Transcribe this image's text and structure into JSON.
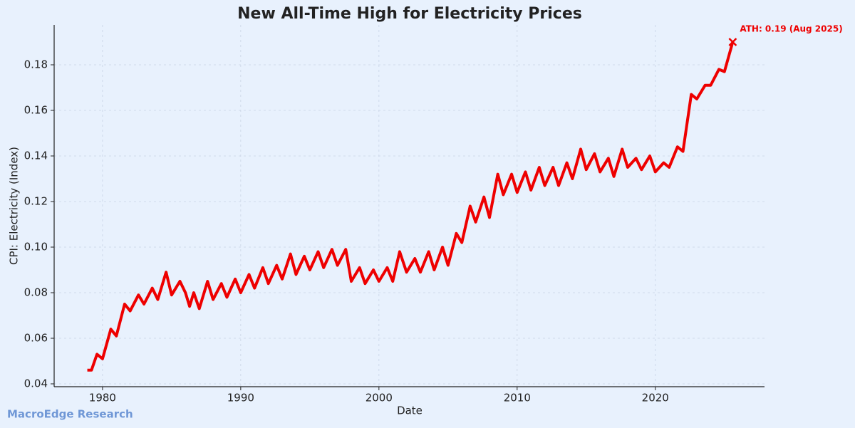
{
  "chart_data": {
    "type": "line",
    "title": "New All-Time High for Electricity Prices",
    "x_label": "Date",
    "y_label": "CPI: Electricity (Index)",
    "annotation": "ATH: 0.19 (Aug 2025)",
    "watermark": "MacroEdge Research",
    "xlim": [
      1976.5,
      2027.9
    ],
    "ylim": [
      0.03875,
      0.1975
    ],
    "xticks": [
      1980,
      1990,
      2000,
      2010,
      2020
    ],
    "yticks": [
      0.04,
      0.06,
      0.08,
      {
        "value": 0.1,
        "label": "0.10"
      },
      0.12,
      0.14,
      0.16,
      0.18
    ],
    "grid": true,
    "x": [
      1978.9,
      1979.2,
      1979.6,
      1980.0,
      1980.6,
      1981.0,
      1981.6,
      1982.0,
      1982.6,
      1983.0,
      1983.6,
      1984.0,
      1984.6,
      1985.0,
      1985.6,
      1986.0,
      1986.3,
      1986.6,
      1987.0,
      1987.6,
      1988.0,
      1988.6,
      1989.0,
      1989.6,
      1990.0,
      1990.6,
      1991.0,
      1991.6,
      1992.0,
      1992.6,
      1993.0,
      1993.6,
      1994.0,
      1994.6,
      1995.0,
      1995.6,
      1996.0,
      1996.6,
      1997.0,
      1997.6,
      1998.0,
      1998.6,
      1999.0,
      1999.6,
      2000.0,
      2000.6,
      2001.0,
      2001.5,
      2002.0,
      2002.6,
      2003.0,
      2003.6,
      2004.0,
      2004.6,
      2005.0,
      2005.6,
      2006.0,
      2006.6,
      2007.0,
      2007.6,
      2008.0,
      2008.6,
      2009.0,
      2009.6,
      2010.0,
      2010.6,
      2011.0,
      2011.6,
      2012.0,
      2012.6,
      2013.0,
      2013.6,
      2014.0,
      2014.6,
      2015.0,
      2015.6,
      2016.0,
      2016.6,
      2017.0,
      2017.6,
      2018.0,
      2018.6,
      2019.0,
      2019.6,
      2020.0,
      2020.6,
      2021.0,
      2021.6,
      2022.0,
      2022.6,
      2023.0,
      2023.6,
      2024.0,
      2024.6,
      2025.0,
      2025.6
    ],
    "series": [
      {
        "name": "CPI: Electricity",
        "color": "#ee0000",
        "values": [
          0.046,
          0.046,
          0.053,
          0.051,
          0.064,
          0.061,
          0.075,
          0.072,
          0.079,
          0.075,
          0.082,
          0.077,
          0.089,
          0.079,
          0.085,
          0.08,
          0.074,
          0.08,
          0.073,
          0.085,
          0.077,
          0.084,
          0.078,
          0.086,
          0.08,
          0.088,
          0.082,
          0.091,
          0.084,
          0.092,
          0.086,
          0.097,
          0.088,
          0.096,
          0.09,
          0.098,
          0.091,
          0.099,
          0.092,
          0.099,
          0.085,
          0.091,
          0.084,
          0.09,
          0.085,
          0.091,
          0.085,
          0.098,
          0.089,
          0.095,
          0.089,
          0.098,
          0.09,
          0.1,
          0.092,
          0.106,
          0.102,
          0.118,
          0.111,
          0.122,
          0.113,
          0.132,
          0.123,
          0.132,
          0.124,
          0.133,
          0.125,
          0.135,
          0.127,
          0.135,
          0.127,
          0.137,
          0.13,
          0.143,
          0.134,
          0.141,
          0.133,
          0.139,
          0.131,
          0.143,
          0.135,
          0.139,
          0.134,
          0.14,
          0.133,
          0.137,
          0.135,
          0.144,
          0.142,
          0.167,
          0.165,
          0.171,
          0.171,
          0.178,
          0.177,
          0.19
        ]
      }
    ]
  }
}
